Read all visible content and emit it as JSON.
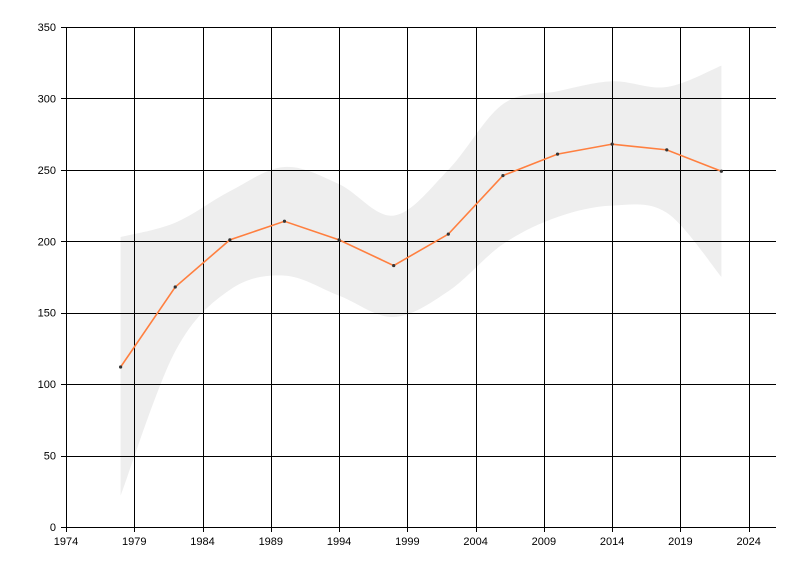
{
  "chart_data": {
    "type": "line",
    "title": "",
    "xlabel": "",
    "ylabel": "",
    "xlim": [
      1974,
      2026
    ],
    "ylim": [
      0,
      350
    ],
    "x_ticks": [
      1974,
      1979,
      1984,
      1989,
      1994,
      1999,
      2004,
      2009,
      2014,
      2019,
      2024
    ],
    "y_ticks": [
      0,
      50,
      100,
      150,
      200,
      250,
      300,
      350
    ],
    "grid": true,
    "legend": "none",
    "series": [
      {
        "x": [
          1978,
          1982,
          1986,
          1990,
          1994,
          1998,
          2002,
          2006,
          2010,
          2014,
          2018,
          2022
        ],
        "values": [
          112,
          168,
          201,
          214,
          201,
          183,
          205,
          246,
          261,
          268,
          264,
          249
        ],
        "color": "#ff7f3f",
        "marker_color": "#333333"
      }
    ],
    "band": {
      "x": [
        1978,
        1982,
        1986,
        1990,
        1994,
        1998,
        2002,
        2006,
        2010,
        2014,
        2018,
        2022
      ],
      "upper": [
        203,
        213,
        235,
        252,
        240,
        218,
        250,
        296,
        305,
        312,
        308,
        323
      ],
      "lower": [
        22,
        123,
        166,
        176,
        162,
        147,
        165,
        198,
        217,
        225,
        220,
        175
      ],
      "color": "#eeeeee"
    }
  }
}
